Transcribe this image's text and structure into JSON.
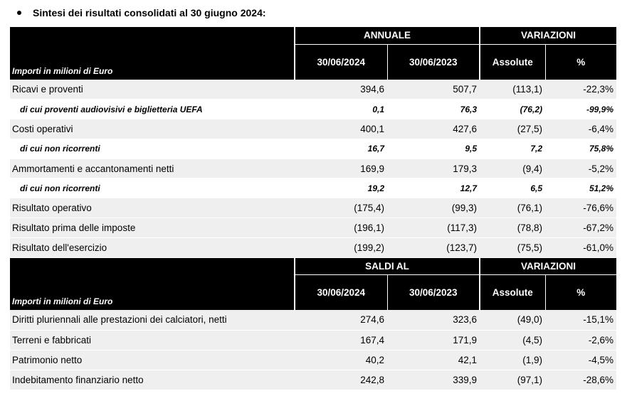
{
  "title": "Sintesi dei risultati consolidati al 30 giugno 2024:",
  "table1": {
    "group1": "ANNUALE",
    "group2": "VARIAZIONI",
    "label_header": "Importi in milioni di Euro",
    "col1": "30/06/2024",
    "col2": "30/06/2023",
    "col3": "Assolute",
    "col4": "%",
    "rows": [
      {
        "label": "Ricavi e proventi",
        "v1": "394,6",
        "v2": "507,7",
        "v3": "(113,1)",
        "v4": "-22,3%"
      },
      {
        "label": "di cui proventi audiovisivi e biglietteria UEFA",
        "v1": "0,1",
        "v2": "76,3",
        "v3": "(76,2)",
        "v4": "-99,9%"
      },
      {
        "label": "Costi operativi",
        "v1": "400,1",
        "v2": "427,6",
        "v3": "(27,5)",
        "v4": "-6,4%"
      },
      {
        "label": "di cui non ricorrenti",
        "v1": "16,7",
        "v2": "9,5",
        "v3": "7,2",
        "v4": "75,8%"
      },
      {
        "label": "Ammortamenti e accantonamenti netti",
        "v1": "169,9",
        "v2": "179,3",
        "v3": "(9,4)",
        "v4": "-5,2%"
      },
      {
        "label": "di cui non ricorrenti",
        "v1": "19,2",
        "v2": "12,7",
        "v3": "6,5",
        "v4": "51,2%"
      },
      {
        "label": "Risultato operativo",
        "v1": "(175,4)",
        "v2": "(99,3)",
        "v3": "(76,1)",
        "v4": "-76,6%"
      },
      {
        "label": "Risultato prima delle imposte",
        "v1": "(196,1)",
        "v2": "(117,3)",
        "v3": "(78,8)",
        "v4": "-67,2%"
      },
      {
        "label": "Risultato dell'esercizio",
        "v1": "(199,2)",
        "v2": "(123,7)",
        "v3": "(75,5)",
        "v4": "-61,0%"
      }
    ]
  },
  "table2": {
    "group1": "SALDI AL",
    "group2": "VARIAZIONI",
    "label_header": "Importi in milioni di Euro",
    "col1": "30/06/2024",
    "col2": "30/06/2023",
    "col3": "Assolute",
    "col4": "%",
    "rows": [
      {
        "label": "Diritti pluriennali alle prestazioni dei calciatori, netti",
        "v1": "274,6",
        "v2": "323,6",
        "v3": "(49,0)",
        "v4": "-15,1%"
      },
      {
        "label": "Terreni e fabbricati",
        "v1": "167,4",
        "v2": "171,9",
        "v3": "(4,5)",
        "v4": "-2,6%"
      },
      {
        "label": "Patrimonio netto",
        "v1": "40,2",
        "v2": "42,1",
        "v3": "(1,9)",
        "v4": "-4,5%"
      },
      {
        "label": "Indebitamento finanziario netto",
        "v1": "242,8",
        "v2": "339,9",
        "v3": "(97,1)",
        "v4": "-28,6%"
      }
    ]
  }
}
